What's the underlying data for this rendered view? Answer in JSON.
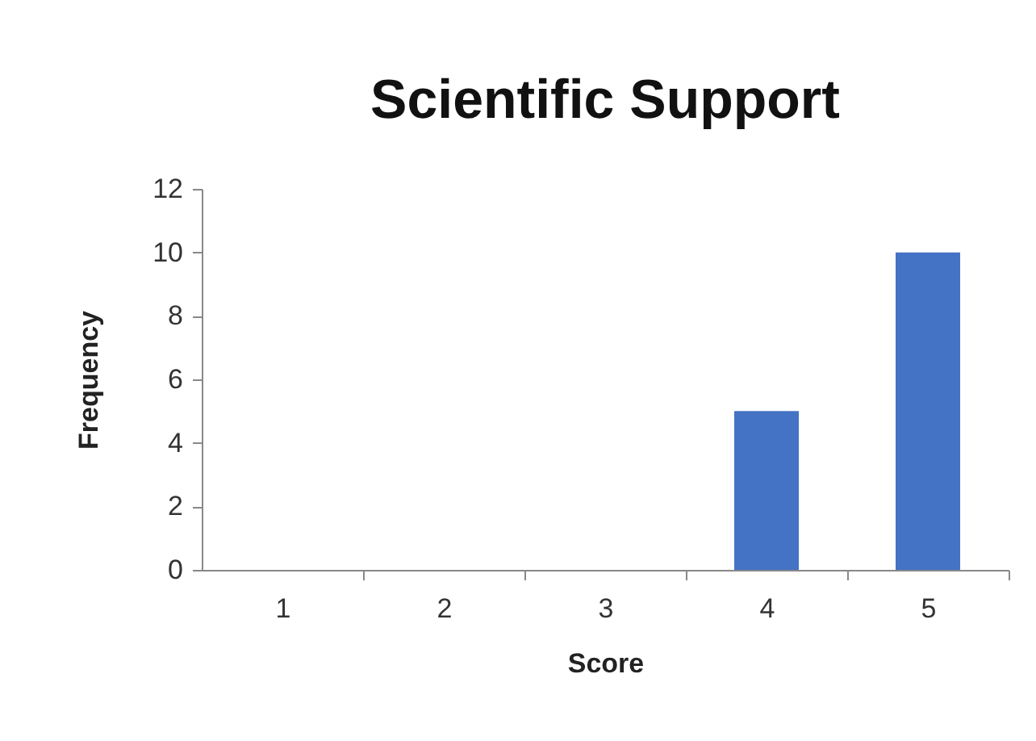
{
  "chart_data": {
    "type": "bar",
    "title": "Scientific Support",
    "xlabel": "Score",
    "ylabel": "Frequency",
    "categories": [
      "1",
      "2",
      "3",
      "4",
      "5"
    ],
    "values": [
      0,
      0,
      0,
      5,
      10
    ],
    "color": "#4472c4",
    "ylim": [
      0,
      12
    ],
    "yticks": [
      0,
      2,
      4,
      6,
      8,
      10,
      12
    ],
    "grid": false,
    "legend": false
  }
}
